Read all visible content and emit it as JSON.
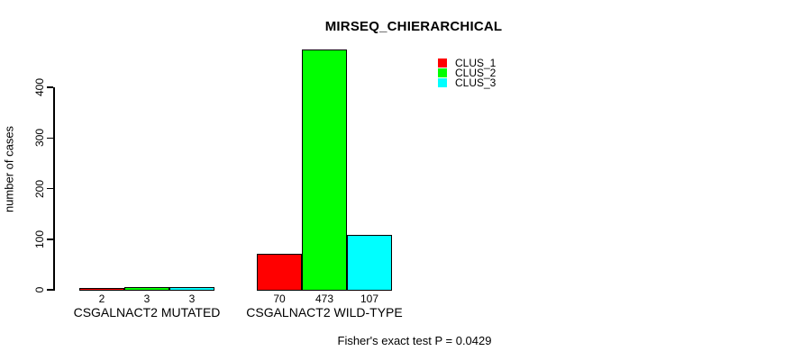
{
  "chart_data": {
    "type": "bar",
    "title": "MIRSEQ_CHIERARCHICAL",
    "ylabel": "number of cases",
    "xlabel": "",
    "categories": [
      "CSGALNACT2 MUTATED",
      "CSGALNACT2 WILD-TYPE"
    ],
    "series": [
      {
        "name": "CLUS_1",
        "color": "#ff0000",
        "values": [
          2,
          70
        ]
      },
      {
        "name": "CLUS_2",
        "color": "#00ff00",
        "values": [
          3,
          473
        ]
      },
      {
        "name": "CLUS_3",
        "color": "#00ffff",
        "values": [
          3,
          107
        ]
      }
    ],
    "bar_value_labels": [
      [
        "2",
        "3",
        "3"
      ],
      [
        "70",
        "473",
        "107"
      ]
    ],
    "yticks": [
      0,
      100,
      200,
      300,
      400
    ],
    "ylim": [
      0,
      473
    ],
    "grid": false,
    "legend_position": "top-right",
    "legend_entries": [
      "CLUS_1",
      "CLUS_2",
      "CLUS_3"
    ],
    "annotation": "Fisher's exact test P = 0.0429",
    "background_color": "#ffffff",
    "axis_color": "#000000",
    "bar_border_color": "#000000",
    "text_color": "#000000"
  }
}
